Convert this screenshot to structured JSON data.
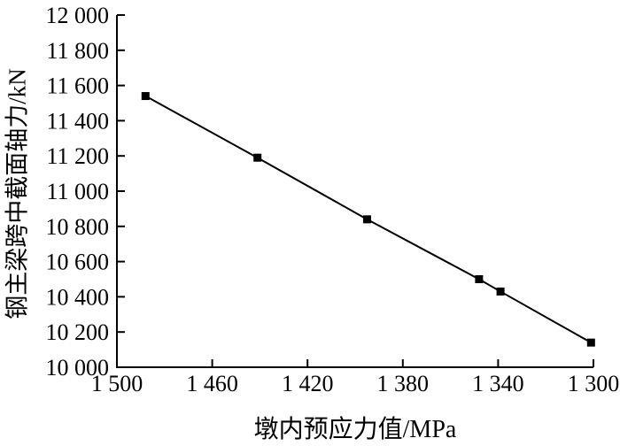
{
  "chart_data": {
    "type": "line",
    "title": "",
    "xlabel": "墩内预应力值/MPa",
    "ylabel": "钢主梁跨中截面轴力/kN",
    "x": [
      1488,
      1441,
      1395,
      1348,
      1339,
      1301
    ],
    "y": [
      11540,
      11190,
      10840,
      10500,
      10430,
      10140
    ],
    "xlim": [
      1500,
      1300
    ],
    "ylim": [
      10000,
      12000
    ],
    "x_axis_reversed": true,
    "grid": false,
    "legend": "none",
    "marker": "filled-square",
    "line_color": "#000000",
    "marker_color": "#000000",
    "axis_color": "#000000",
    "background_color": "#ffffff",
    "x_ticks": [
      {
        "v": 1500,
        "label": "1 500"
      },
      {
        "v": 1460,
        "label": "1 460"
      },
      {
        "v": 1420,
        "label": "1 420"
      },
      {
        "v": 1380,
        "label": "1 380"
      },
      {
        "v": 1340,
        "label": "1 340"
      },
      {
        "v": 1300,
        "label": "1 300"
      }
    ],
    "y_ticks": [
      {
        "v": 10000,
        "label": "10 000"
      },
      {
        "v": 10200,
        "label": "10 200"
      },
      {
        "v": 10400,
        "label": "10 400"
      },
      {
        "v": 10600,
        "label": "10 600"
      },
      {
        "v": 10800,
        "label": "10 800"
      },
      {
        "v": 11000,
        "label": "11 000"
      },
      {
        "v": 11200,
        "label": "11 200"
      },
      {
        "v": 11400,
        "label": "11 400"
      },
      {
        "v": 11600,
        "label": "11 600"
      },
      {
        "v": 11800,
        "label": "11 800"
      },
      {
        "v": 12000,
        "label": "12 000"
      }
    ]
  }
}
